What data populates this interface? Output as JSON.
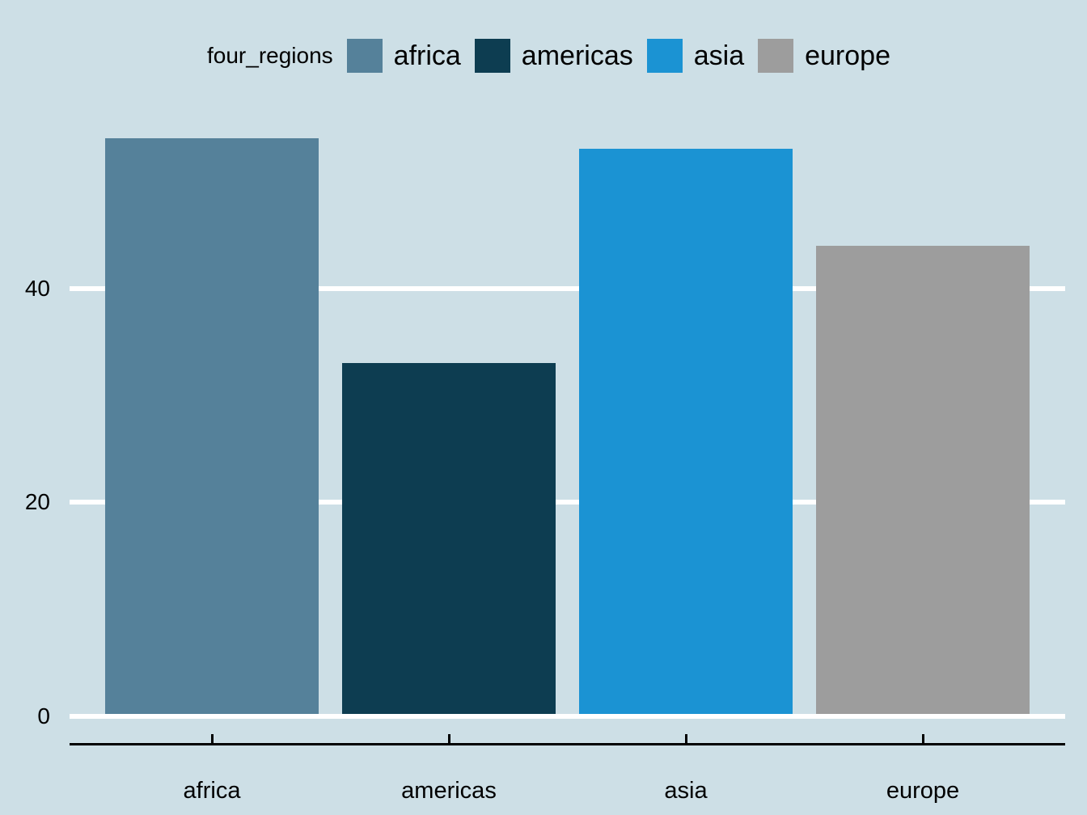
{
  "chart_data": {
    "type": "bar",
    "legend_title": "four_regions",
    "legend_position": "top",
    "categories": [
      "africa",
      "americas",
      "asia",
      "europe"
    ],
    "values": [
      54,
      33,
      53,
      44
    ],
    "series_colors": {
      "africa": "#55819a",
      "americas": "#0d3d51",
      "asia": "#1b93d3",
      "europe": "#9d9d9d"
    },
    "x_tick_labels": [
      "africa",
      "americas",
      "asia",
      "europe"
    ],
    "yticks": [
      0,
      20,
      40
    ],
    "ylim": [
      0,
      57
    ],
    "grid": "horizontal-white-lines",
    "xlabel": "",
    "ylabel": ""
  },
  "colors": {
    "background": "#cddfe6",
    "gridline": "#ffffff",
    "axis": "#000000",
    "text": "#000000"
  }
}
